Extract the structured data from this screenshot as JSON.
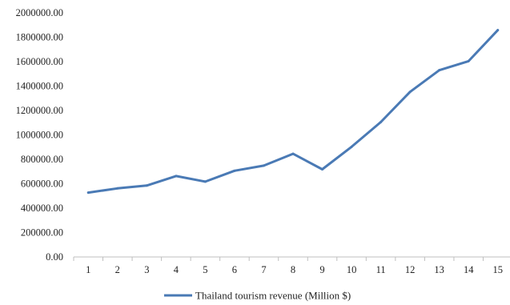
{
  "chart_data": {
    "type": "line",
    "title": "",
    "xlabel": "",
    "ylabel": "",
    "x": [
      1,
      2,
      3,
      4,
      5,
      6,
      7,
      8,
      9,
      10,
      11,
      12,
      13,
      14,
      15
    ],
    "x_tick_labels": [
      "1",
      "2",
      "3",
      "4",
      "5",
      "6",
      "7",
      "8",
      "9",
      "10",
      "11",
      "12",
      "13",
      "14",
      "15"
    ],
    "y_tick_labels": [
      "2000000.00",
      "1800000.00",
      "1600000.00",
      "1400000.00",
      "1200000.00",
      "1000000.00",
      "800000.00",
      "600000.00",
      "400000.00",
      "200000.00",
      "0.00"
    ],
    "y_ticks": [
      2000000,
      1800000,
      1600000,
      1400000,
      1200000,
      1000000,
      800000,
      600000,
      400000,
      200000,
      0
    ],
    "ylim": [
      0,
      2000000
    ],
    "grid": false,
    "legend_position": "bottom",
    "series": [
      {
        "name": "Thailand tourism revenue (Million $)",
        "color": "#4a7ab5",
        "values": [
          527000,
          562000,
          585000,
          663000,
          617000,
          706000,
          748000,
          845000,
          718000,
          902000,
          1105000,
          1352000,
          1530000,
          1604000,
          1858000
        ]
      }
    ]
  }
}
